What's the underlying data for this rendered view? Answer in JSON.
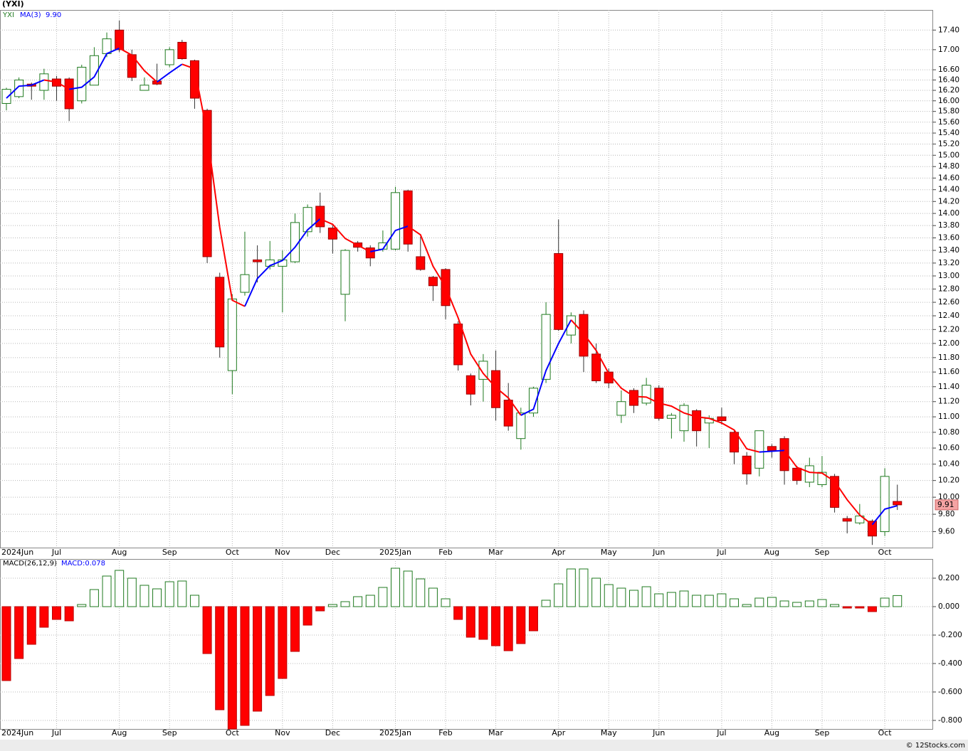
{
  "chart_data": [
    {
      "type": "candlestick",
      "title": "(YXI)",
      "log_scale": true,
      "grid": true,
      "categories": [
        "2024Jun",
        null,
        null,
        null,
        "Jul",
        null,
        null,
        null,
        null,
        "Aug",
        null,
        null,
        null,
        "Sep",
        null,
        null,
        null,
        null,
        "Oct",
        null,
        null,
        null,
        "Nov",
        null,
        null,
        null,
        "Dec",
        null,
        null,
        null,
        null,
        "2025Jan",
        null,
        null,
        null,
        "Feb",
        null,
        null,
        null,
        "Mar",
        null,
        null,
        null,
        null,
        "Apr",
        null,
        null,
        null,
        "May",
        null,
        null,
        null,
        "Jun",
        null,
        null,
        null,
        null,
        "Jul",
        null,
        null,
        null,
        "Aug",
        null,
        null,
        null,
        "Sep",
        null,
        null,
        null,
        null,
        "Oct",
        null
      ],
      "series": [
        {
          "name": "YXI",
          "up_color": "#1f7a1f",
          "down_color": "#ff0000",
          "label_color": "#f4a3a3",
          "open": [
            15.95,
            16.08,
            16.32,
            16.2,
            16.42,
            16.42,
            16.0,
            16.3,
            16.92,
            17.4,
            16.9,
            16.2,
            16.38,
            16.7,
            17.15,
            16.78,
            15.82,
            12.98,
            11.62,
            12.75,
            13.25,
            13.15,
            13.15,
            13.22,
            13.7,
            14.12,
            13.76,
            12.72,
            13.52,
            13.44,
            13.42,
            13.42,
            14.38,
            13.3,
            12.98,
            13.1,
            12.28,
            11.55,
            11.5,
            11.62,
            11.22,
            10.72,
            11.05,
            11.5,
            13.35,
            12.12,
            12.42,
            11.85,
            11.6,
            11.02,
            11.35,
            11.18,
            11.38,
            10.98,
            10.82,
            11.08,
            10.92,
            11.0,
            10.8,
            10.5,
            10.35,
            10.62,
            10.72,
            10.35,
            10.18,
            10.15,
            10.25,
            9.75,
            9.7,
            9.72,
            9.6,
            9.95
          ],
          "high": [
            16.25,
            16.45,
            16.35,
            16.62,
            16.48,
            16.45,
            16.7,
            17.05,
            17.35,
            17.6,
            17.0,
            16.45,
            16.72,
            17.05,
            17.2,
            16.8,
            15.85,
            13.05,
            12.72,
            13.7,
            13.48,
            13.55,
            13.4,
            14.0,
            14.15,
            14.35,
            13.82,
            13.42,
            13.55,
            13.48,
            13.72,
            14.45,
            14.4,
            13.62,
            13.0,
            13.12,
            12.32,
            11.58,
            11.85,
            11.9,
            11.45,
            11.12,
            11.4,
            12.6,
            13.9,
            12.45,
            12.48,
            12.0,
            11.65,
            11.35,
            11.38,
            11.52,
            11.42,
            11.05,
            11.18,
            11.1,
            11.02,
            11.12,
            10.82,
            10.55,
            10.82,
            10.65,
            10.75,
            10.38,
            10.48,
            10.5,
            10.28,
            9.78,
            9.92,
            9.74,
            10.35,
            10.15
          ],
          "low": [
            15.82,
            16.05,
            16.02,
            16.02,
            16.0,
            15.62,
            15.95,
            16.3,
            16.85,
            16.95,
            16.38,
            16.2,
            16.3,
            16.65,
            16.8,
            15.85,
            13.2,
            11.8,
            11.3,
            12.7,
            12.9,
            13.1,
            12.45,
            13.2,
            13.62,
            13.68,
            13.35,
            12.32,
            13.38,
            13.15,
            13.38,
            13.4,
            13.38,
            13.08,
            12.62,
            12.35,
            11.62,
            11.15,
            11.2,
            10.95,
            10.82,
            10.58,
            11.0,
            11.45,
            12.18,
            12.0,
            11.6,
            11.45,
            11.38,
            10.92,
            11.05,
            11.15,
            10.95,
            10.72,
            10.68,
            10.62,
            10.6,
            10.9,
            10.4,
            10.15,
            10.25,
            10.48,
            10.15,
            10.15,
            10.12,
            10.12,
            9.82,
            9.58,
            9.68,
            9.45,
            9.55,
            9.85
          ],
          "close": [
            16.22,
            16.4,
            16.28,
            16.52,
            16.28,
            15.85,
            16.65,
            16.88,
            17.22,
            17.0,
            16.45,
            16.3,
            16.32,
            17.0,
            16.82,
            16.05,
            13.3,
            11.95,
            12.65,
            13.02,
            13.22,
            13.25,
            13.25,
            13.85,
            14.1,
            13.78,
            13.58,
            13.4,
            13.45,
            13.28,
            13.52,
            14.35,
            13.5,
            13.1,
            12.85,
            12.55,
            11.7,
            11.3,
            11.75,
            11.12,
            10.88,
            11.05,
            11.38,
            12.42,
            12.2,
            12.4,
            11.82,
            11.48,
            11.45,
            11.2,
            11.15,
            11.42,
            10.98,
            11.02,
            11.15,
            10.82,
            10.98,
            10.95,
            10.55,
            10.28,
            10.82,
            10.57,
            10.32,
            10.2,
            10.38,
            10.3,
            9.88,
            9.72,
            9.78,
            9.55,
            10.25,
            9.91
          ]
        },
        {
          "name": "MA(3)",
          "up_color": "#0000ff",
          "down_color": "#ff0000",
          "legend_value": "9.90",
          "values": [
            16.05,
            16.28,
            16.3,
            16.4,
            16.36,
            16.22,
            16.26,
            16.46,
            16.92,
            17.03,
            16.89,
            16.58,
            16.36,
            16.54,
            16.71,
            16.62,
            15.39,
            13.77,
            12.63,
            12.54,
            12.96,
            13.16,
            13.24,
            13.45,
            13.73,
            13.91,
            13.82,
            13.59,
            13.48,
            13.38,
            13.42,
            13.72,
            13.79,
            13.65,
            13.15,
            12.83,
            12.37,
            11.85,
            11.58,
            11.39,
            11.25,
            11.02,
            11.1,
            11.62,
            12.0,
            12.34,
            12.14,
            11.9,
            11.58,
            11.38,
            11.27,
            11.26,
            11.18,
            11.14,
            11.05,
            11.0,
            10.98,
            10.92,
            10.83,
            10.59,
            10.55,
            10.56,
            10.57,
            10.36,
            10.3,
            10.29,
            10.19,
            9.97,
            9.79,
            9.68,
            9.86,
            9.9
          ]
        }
      ],
      "ylim": [
        9.42,
        17.82
      ],
      "yticks": [
        {
          "value": 17.4,
          "label": "17.40"
        },
        {
          "value": 17.0,
          "label": "17.00"
        },
        {
          "value": 16.6,
          "label": "16.60"
        },
        {
          "value": 16.4,
          "label": "16.40"
        },
        {
          "value": 16.2,
          "label": "16.20"
        },
        {
          "value": 16.0,
          "label": "16.00"
        },
        {
          "value": 15.8,
          "label": "15.80"
        },
        {
          "value": 15.6,
          "label": "15.60"
        },
        {
          "value": 15.4,
          "label": "15.40"
        },
        {
          "value": 15.2,
          "label": "15.20"
        },
        {
          "value": 15.0,
          "label": "15.00"
        },
        {
          "value": 14.8,
          "label": "14.80"
        },
        {
          "value": 14.6,
          "label": "14.60"
        },
        {
          "value": 14.4,
          "label": "14.40"
        },
        {
          "value": 14.2,
          "label": "14.20"
        },
        {
          "value": 14.0,
          "label": "14.00"
        },
        {
          "value": 13.8,
          "label": "13.80"
        },
        {
          "value": 13.6,
          "label": "13.60"
        },
        {
          "value": 13.4,
          "label": "13.40"
        },
        {
          "value": 13.2,
          "label": "13.20"
        },
        {
          "value": 13.0,
          "label": "13.00"
        },
        {
          "value": 12.8,
          "label": "12.80"
        },
        {
          "value": 12.6,
          "label": "12.60"
        },
        {
          "value": 12.4,
          "label": "12.40"
        },
        {
          "value": 12.2,
          "label": "12.20"
        },
        {
          "value": 12.0,
          "label": "12.00"
        },
        {
          "value": 11.8,
          "label": "11.80"
        },
        {
          "value": 11.6,
          "label": "11.60"
        },
        {
          "value": 11.4,
          "label": "11.40"
        },
        {
          "value": 11.2,
          "label": "11.20"
        },
        {
          "value": 11.0,
          "label": "11.00"
        },
        {
          "value": 10.8,
          "label": "10.80"
        },
        {
          "value": 10.6,
          "label": "10.60"
        },
        {
          "value": 10.4,
          "label": "10.40"
        },
        {
          "value": 10.2,
          "label": "10.20"
        },
        {
          "value": 10.0,
          "label": "10.00"
        },
        {
          "value": 9.8,
          "label": "9.80"
        },
        {
          "value": 9.6,
          "label": "9.60"
        }
      ]
    },
    {
      "type": "histogram",
      "title": "MACD(26,12,9)",
      "label": "MACD:0.078",
      "grid": true,
      "pos_color": "#1f7a1f",
      "neg_color": "#ff0000",
      "label_color": "#0000ff",
      "values": [
        -0.52,
        -0.365,
        -0.265,
        -0.145,
        -0.09,
        -0.1,
        0.015,
        0.12,
        0.215,
        0.255,
        0.2,
        0.15,
        0.125,
        0.175,
        0.18,
        0.08,
        -0.33,
        -0.725,
        -0.86,
        -0.835,
        -0.735,
        -0.625,
        -0.505,
        -0.315,
        -0.13,
        -0.03,
        0.015,
        0.035,
        0.07,
        0.08,
        0.135,
        0.27,
        0.25,
        0.195,
        0.13,
        0.055,
        -0.09,
        -0.215,
        -0.23,
        -0.275,
        -0.31,
        -0.26,
        -0.17,
        0.045,
        0.16,
        0.265,
        0.265,
        0.2,
        0.155,
        0.13,
        0.115,
        0.14,
        0.09,
        0.1,
        0.11,
        0.08,
        0.08,
        0.09,
        0.055,
        0.015,
        0.06,
        0.065,
        0.04,
        0.03,
        0.04,
        0.05,
        0.015,
        -0.01,
        -0.01,
        -0.035,
        0.06,
        0.078
      ],
      "ylim": [
        -0.86,
        0.335
      ],
      "yticks": [
        {
          "value": 0.2,
          "label": "0.200"
        },
        {
          "value": 0,
          "label": "0.000"
        },
        {
          "value": -0.2,
          "label": "-0.200"
        },
        {
          "value": -0.4,
          "label": "-0.400"
        },
        {
          "value": -0.6,
          "label": "-0.600"
        },
        {
          "value": -0.8,
          "label": "-0.800"
        }
      ]
    }
  ],
  "footer": "© 12Stocks.com"
}
